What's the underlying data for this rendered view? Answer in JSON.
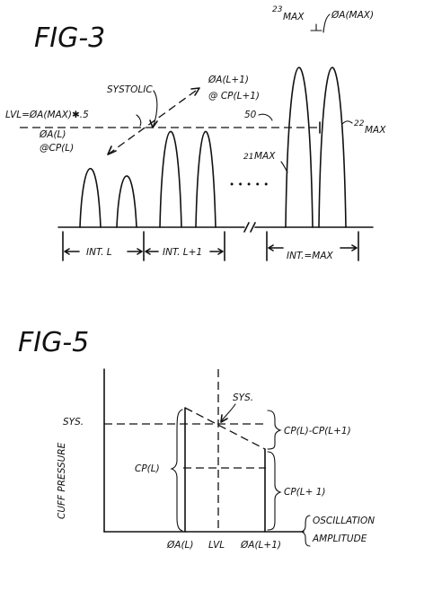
{
  "fig3": {
    "title": "FIG-3",
    "max_23": "MAX",
    "max_23_num": "23",
    "oa_max": "ØA(MAX)",
    "systolic": "SYSTOLIC",
    "oa_l1": "ØA(L+1)",
    "cp_l1": "@ CP(L+1)",
    "lvl": "LVL=ØA(MAX)✱.5",
    "ref_50": "50",
    "max_22_num": "22",
    "max_22": "MAX",
    "oa_l": "ØA(L)",
    "cp_l": "@CP(L)",
    "max_21_num": "21",
    "max_21": "MAX",
    "dots": "• • • • •",
    "int_l": "INT. L",
    "int_l1": "INT. L+1",
    "int_max": "INT.=MAX"
  },
  "fig5": {
    "title": "FIG-5",
    "ylabel": "CUFF  PRESSURE",
    "sys_axis": "SYS.",
    "sys_point": "SYS.",
    "cp_diff": "CP(L)-CP(L+1)",
    "cp_l": "CP(L)",
    "cp_l1": "CP(L+ 1)",
    "osc_1": "OSCILLATION",
    "osc_2": "AMPLITUDE",
    "x_oal": "ØA(L)",
    "x_lvl": "LVL",
    "x_oal1": "ØA(L+1)"
  }
}
